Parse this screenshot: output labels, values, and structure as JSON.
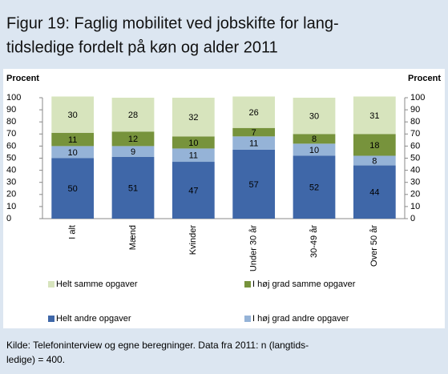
{
  "chart_data": {
    "type": "stacked_bar",
    "title": [
      "Figur 19: Faglig mobilitet ved jobskifte for lang-",
      "tidsledige fordelt på køn og alder 2011"
    ],
    "y_label": "Procent",
    "y2_label": "Procent",
    "categories": [
      "I alt",
      "Mænd",
      "Kvinder",
      "Under 30 år",
      "30-49 år",
      "Over 50 år"
    ],
    "series": [
      {
        "name": "Helt andre opgaver",
        "color": "#3f67a8",
        "values": [
          50,
          51,
          47,
          57,
          52,
          44
        ]
      },
      {
        "name": "I høj grad andre opgaver",
        "color": "#95b3d7",
        "values": [
          10,
          9,
          11,
          11,
          10,
          8
        ]
      },
      {
        "name": "I høj grad samme opgaver",
        "color": "#77933c",
        "values": [
          11,
          12,
          10,
          7,
          8,
          18
        ]
      },
      {
        "name": "Helt samme opgaver",
        "color": "#d7e4bd",
        "values": [
          30,
          28,
          32,
          26,
          30,
          31
        ]
      }
    ],
    "ylim": [
      0,
      100
    ],
    "yticks": [
      0,
      10,
      20,
      30,
      40,
      50,
      60,
      70,
      80,
      90,
      100
    ],
    "y2lim": [
      0,
      100
    ],
    "y2ticks": [
      0,
      10,
      20,
      30,
      40,
      50,
      60,
      70,
      80,
      90,
      100
    ],
    "source": [
      "Kilde: Telefoninterview og egne beregninger. Data fra 2011: n (langtids-",
      "ledige) = 400."
    ]
  }
}
